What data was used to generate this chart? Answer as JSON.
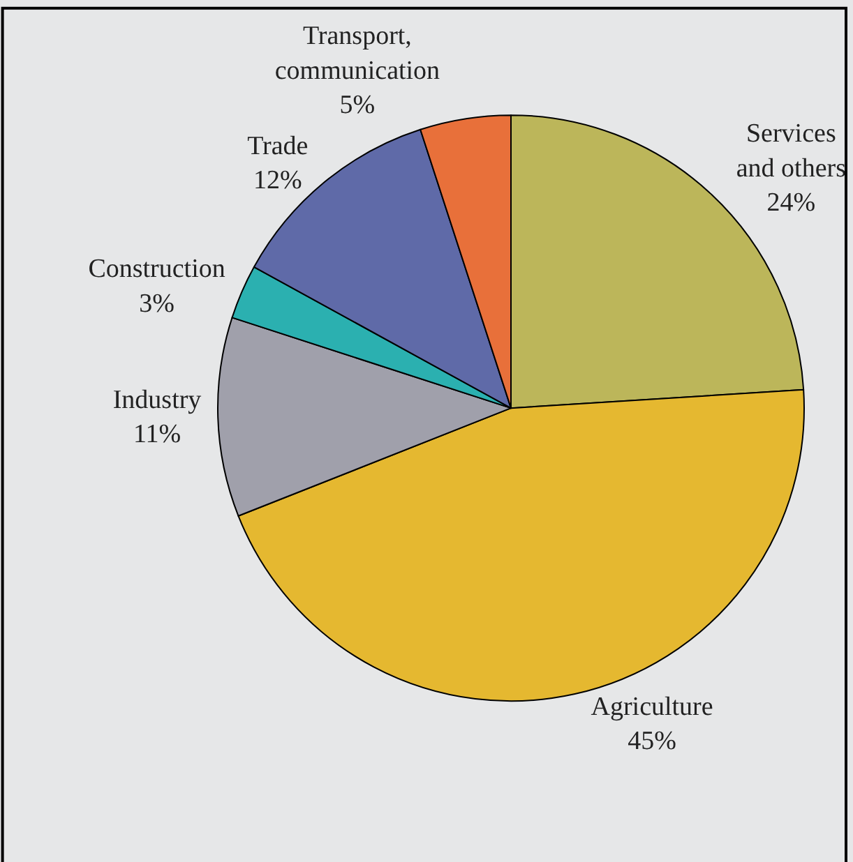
{
  "chart_data": {
    "type": "pie",
    "categories": [
      "Services\nand others",
      "Agriculture",
      "Industry",
      "Construction",
      "Trade",
      "Transport,\ncommunication"
    ],
    "values": [
      24,
      45,
      11,
      3,
      12,
      5
    ],
    "value_labels": [
      "24%",
      "45%",
      "11%",
      "3%",
      "12%",
      "5%"
    ],
    "colors": [
      "#bcb65a",
      "#e5b830",
      "#a0a0ab",
      "#2bb0b0",
      "#5f6aa8",
      "#e8703a"
    ],
    "legend": false
  }
}
